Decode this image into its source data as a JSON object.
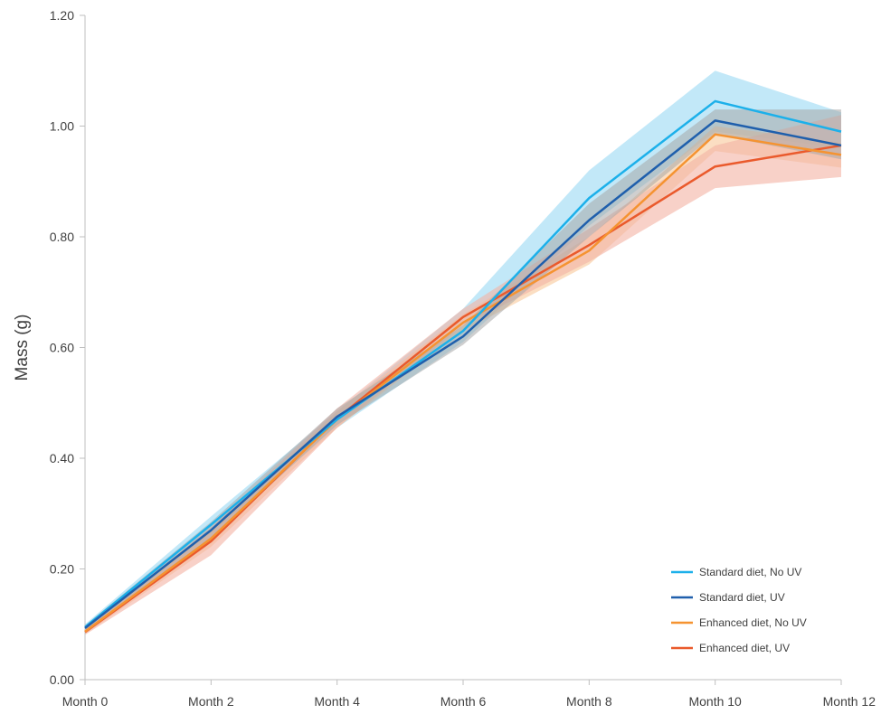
{
  "chart_data": {
    "type": "line",
    "title": "",
    "xlabel": "",
    "ylabel": "Mass (g)",
    "categories": [
      "Month 0",
      "Month 2",
      "Month 4",
      "Month 6",
      "Month 8",
      "Month 10",
      "Month 12"
    ],
    "ylim": [
      0,
      1.2
    ],
    "yticks": [
      0.0,
      0.2,
      0.4,
      0.6,
      0.8,
      1.0,
      1.2
    ],
    "ytick_labels": [
      "0.00",
      "0.20",
      "0.40",
      "0.60",
      "0.80",
      "1.00",
      "1.20"
    ],
    "grid": false,
    "legend_position": "bottom-right",
    "series": [
      {
        "name": "Standard diet, No UV",
        "color": "#1cb0ea",
        "band_color": "#9ad8f3",
        "values": [
          0.095,
          0.28,
          0.47,
          0.63,
          0.87,
          1.045,
          0.99
        ],
        "lower": [
          0.09,
          0.265,
          0.455,
          0.61,
          0.82,
          0.99,
          0.96
        ],
        "upper": [
          0.1,
          0.295,
          0.485,
          0.67,
          0.92,
          1.1,
          1.025
        ]
      },
      {
        "name": "Standard diet,  UV",
        "color": "#1f5fac",
        "band_color": "#a8a8a8",
        "values": [
          0.093,
          0.27,
          0.475,
          0.62,
          0.83,
          1.01,
          0.965
        ],
        "lower": [
          0.088,
          0.255,
          0.46,
          0.605,
          0.8,
          0.985,
          0.94
        ],
        "upper": [
          0.098,
          0.285,
          0.49,
          0.64,
          0.86,
          1.03,
          1.03
        ]
      },
      {
        "name": "Enhanced diet, No UV",
        "color": "#f59331",
        "band_color": "#f8c89a",
        "values": [
          0.087,
          0.255,
          0.47,
          0.645,
          0.775,
          0.985,
          0.948
        ],
        "lower": [
          0.082,
          0.24,
          0.455,
          0.63,
          0.75,
          0.955,
          0.925
        ],
        "upper": [
          0.092,
          0.27,
          0.485,
          0.66,
          0.8,
          1.0,
          0.97
        ]
      },
      {
        "name": "Enhanced diet,  UV",
        "color": "#ea5a2c",
        "band_color": "#f3b3a4",
        "values": [
          0.086,
          0.25,
          0.472,
          0.655,
          0.785,
          0.927,
          0.965
        ],
        "lower": [
          0.081,
          0.225,
          0.455,
          0.64,
          0.755,
          0.888,
          0.908
        ],
        "upper": [
          0.091,
          0.275,
          0.49,
          0.67,
          0.815,
          0.965,
          1.02
        ]
      }
    ]
  }
}
